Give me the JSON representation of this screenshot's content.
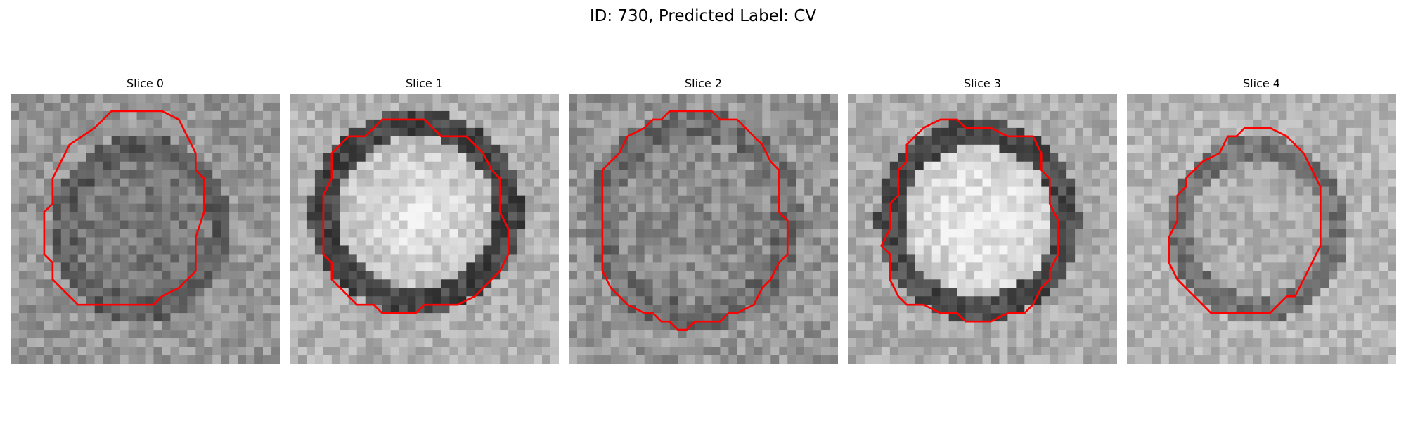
{
  "figure": {
    "title": "ID: 730, Predicted Label: CV"
  },
  "slices": [
    {
      "label": "Slice 0"
    },
    {
      "label": "Slice 1"
    },
    {
      "label": "Slice 2"
    },
    {
      "label": "Slice 3"
    },
    {
      "label": "Slice 4"
    }
  ],
  "colors": {
    "contour": "#ff0000",
    "background": "#ffffff"
  }
}
